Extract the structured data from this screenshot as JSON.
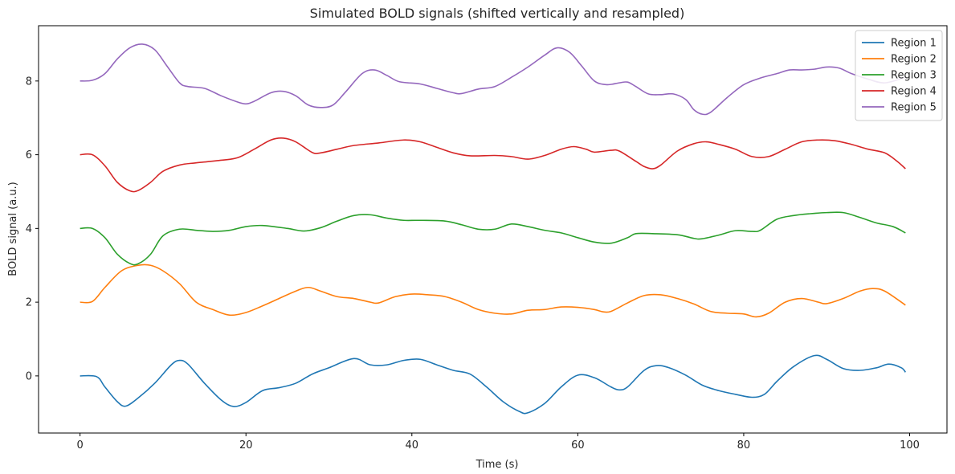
{
  "chart_data": {
    "type": "line",
    "title": "Simulated BOLD signals (shifted vertically and resampled)",
    "xlabel": "Time (s)",
    "ylabel": "BOLD signal (a.u.)",
    "xlim": [
      -5,
      104.5
    ],
    "ylim": [
      -1.55,
      9.5
    ],
    "xticks": [
      0,
      20,
      40,
      60,
      80,
      100
    ],
    "yticks": [
      0,
      2,
      4,
      6,
      8
    ],
    "grid": false,
    "legend_position": "top-right",
    "series": [
      {
        "name": "Region 1",
        "color": "#1f77b4",
        "points": [
          [
            0,
            0
          ],
          [
            2,
            -0.02
          ],
          [
            3,
            -0.3
          ],
          [
            4.5,
            -0.7
          ],
          [
            5.5,
            -0.82
          ],
          [
            7,
            -0.6
          ],
          [
            9,
            -0.2
          ],
          [
            11,
            0.3
          ],
          [
            12,
            0.42
          ],
          [
            13,
            0.32
          ],
          [
            15,
            -0.2
          ],
          [
            17,
            -0.65
          ],
          [
            18.5,
            -0.83
          ],
          [
            20,
            -0.72
          ],
          [
            22,
            -0.4
          ],
          [
            24,
            -0.32
          ],
          [
            26,
            -0.2
          ],
          [
            28,
            0.05
          ],
          [
            30,
            0.22
          ],
          [
            33,
            0.47
          ],
          [
            35,
            0.3
          ],
          [
            37,
            0.3
          ],
          [
            39,
            0.42
          ],
          [
            41,
            0.45
          ],
          [
            43,
            0.3
          ],
          [
            45,
            0.15
          ],
          [
            47,
            0.05
          ],
          [
            49,
            -0.3
          ],
          [
            51,
            -0.7
          ],
          [
            53,
            -0.97
          ],
          [
            54,
            -1.0
          ],
          [
            56,
            -0.75
          ],
          [
            58,
            -0.3
          ],
          [
            60,
            0.02
          ],
          [
            62,
            -0.05
          ],
          [
            64,
            -0.3
          ],
          [
            65,
            -0.38
          ],
          [
            66,
            -0.3
          ],
          [
            68,
            0.15
          ],
          [
            69.5,
            0.28
          ],
          [
            71,
            0.22
          ],
          [
            73,
            0.02
          ],
          [
            75,
            -0.25
          ],
          [
            77,
            -0.4
          ],
          [
            79,
            -0.5
          ],
          [
            81,
            -0.58
          ],
          [
            82.5,
            -0.5
          ],
          [
            84,
            -0.15
          ],
          [
            86,
            0.25
          ],
          [
            88.5,
            0.55
          ],
          [
            90,
            0.45
          ],
          [
            92,
            0.2
          ],
          [
            94,
            0.15
          ],
          [
            96,
            0.22
          ],
          [
            97.5,
            0.32
          ],
          [
            99,
            0.22
          ],
          [
            99.5,
            0.1
          ]
        ]
      },
      {
        "name": "Region 2",
        "color": "#ff7f0e",
        "points": [
          [
            0,
            2
          ],
          [
            1.5,
            2.02
          ],
          [
            3,
            2.4
          ],
          [
            5,
            2.85
          ],
          [
            7,
            3.0
          ],
          [
            8.5,
            3.0
          ],
          [
            10,
            2.85
          ],
          [
            12,
            2.5
          ],
          [
            14,
            2.0
          ],
          [
            16,
            1.8
          ],
          [
            18,
            1.65
          ],
          [
            20,
            1.72
          ],
          [
            22,
            1.9
          ],
          [
            24,
            2.1
          ],
          [
            26,
            2.3
          ],
          [
            27.5,
            2.4
          ],
          [
            29,
            2.3
          ],
          [
            31,
            2.15
          ],
          [
            33,
            2.1
          ],
          [
            35,
            2.0
          ],
          [
            36,
            1.98
          ],
          [
            38,
            2.15
          ],
          [
            40,
            2.22
          ],
          [
            42,
            2.2
          ],
          [
            44,
            2.15
          ],
          [
            46,
            2.0
          ],
          [
            48,
            1.8
          ],
          [
            50,
            1.7
          ],
          [
            52,
            1.68
          ],
          [
            54,
            1.78
          ],
          [
            56,
            1.8
          ],
          [
            58,
            1.87
          ],
          [
            60,
            1.86
          ],
          [
            62,
            1.8
          ],
          [
            63,
            1.74
          ],
          [
            64,
            1.75
          ],
          [
            66,
            1.98
          ],
          [
            68,
            2.18
          ],
          [
            70,
            2.2
          ],
          [
            72,
            2.1
          ],
          [
            74,
            1.95
          ],
          [
            76,
            1.75
          ],
          [
            78,
            1.7
          ],
          [
            80,
            1.68
          ],
          [
            81.5,
            1.6
          ],
          [
            83,
            1.7
          ],
          [
            85,
            2.0
          ],
          [
            87,
            2.1
          ],
          [
            89,
            2.0
          ],
          [
            90,
            1.96
          ],
          [
            92,
            2.1
          ],
          [
            94,
            2.3
          ],
          [
            95.5,
            2.37
          ],
          [
            97,
            2.3
          ],
          [
            99.5,
            1.92
          ]
        ]
      },
      {
        "name": "Region 3",
        "color": "#2ca02c",
        "points": [
          [
            0,
            4
          ],
          [
            1.5,
            4.0
          ],
          [
            3,
            3.75
          ],
          [
            4.5,
            3.3
          ],
          [
            6,
            3.05
          ],
          [
            7,
            3.04
          ],
          [
            8.5,
            3.3
          ],
          [
            10,
            3.8
          ],
          [
            12,
            3.98
          ],
          [
            14,
            3.95
          ],
          [
            16,
            3.92
          ],
          [
            18,
            3.95
          ],
          [
            20,
            4.05
          ],
          [
            22,
            4.08
          ],
          [
            25,
            4.0
          ],
          [
            27,
            3.93
          ],
          [
            29,
            4.02
          ],
          [
            31,
            4.2
          ],
          [
            33,
            4.35
          ],
          [
            35,
            4.37
          ],
          [
            37,
            4.28
          ],
          [
            39,
            4.22
          ],
          [
            41,
            4.22
          ],
          [
            44,
            4.2
          ],
          [
            46,
            4.1
          ],
          [
            48,
            3.98
          ],
          [
            50,
            3.98
          ],
          [
            52,
            4.12
          ],
          [
            54,
            4.05
          ],
          [
            56,
            3.95
          ],
          [
            58,
            3.88
          ],
          [
            60,
            3.75
          ],
          [
            62,
            3.63
          ],
          [
            64,
            3.6
          ],
          [
            66,
            3.75
          ],
          [
            67,
            3.86
          ],
          [
            69,
            3.86
          ],
          [
            72,
            3.83
          ],
          [
            74,
            3.73
          ],
          [
            75,
            3.72
          ],
          [
            77,
            3.82
          ],
          [
            79,
            3.94
          ],
          [
            81,
            3.92
          ],
          [
            82,
            3.95
          ],
          [
            84,
            4.25
          ],
          [
            86,
            4.35
          ],
          [
            88,
            4.4
          ],
          [
            90,
            4.43
          ],
          [
            92,
            4.43
          ],
          [
            94,
            4.3
          ],
          [
            96,
            4.15
          ],
          [
            98,
            4.05
          ],
          [
            99.5,
            3.88
          ]
        ]
      },
      {
        "name": "Region 4",
        "color": "#d62728",
        "points": [
          [
            0,
            6
          ],
          [
            1.5,
            6.0
          ],
          [
            3,
            5.7
          ],
          [
            4.5,
            5.25
          ],
          [
            6,
            5.02
          ],
          [
            7,
            5.03
          ],
          [
            8.5,
            5.25
          ],
          [
            10,
            5.55
          ],
          [
            12,
            5.72
          ],
          [
            14,
            5.78
          ],
          [
            17,
            5.85
          ],
          [
            19,
            5.92
          ],
          [
            21,
            6.15
          ],
          [
            23,
            6.4
          ],
          [
            24.5,
            6.45
          ],
          [
            26,
            6.35
          ],
          [
            28,
            6.06
          ],
          [
            29,
            6.05
          ],
          [
            31,
            6.15
          ],
          [
            33,
            6.25
          ],
          [
            36,
            6.32
          ],
          [
            39,
            6.4
          ],
          [
            41,
            6.35
          ],
          [
            43,
            6.2
          ],
          [
            45,
            6.05
          ],
          [
            47,
            5.97
          ],
          [
            50,
            5.98
          ],
          [
            52,
            5.95
          ],
          [
            54,
            5.88
          ],
          [
            56,
            5.98
          ],
          [
            58,
            6.15
          ],
          [
            59.5,
            6.22
          ],
          [
            61,
            6.15
          ],
          [
            62,
            6.07
          ],
          [
            64,
            6.12
          ],
          [
            65,
            6.1
          ],
          [
            67,
            5.82
          ],
          [
            68,
            5.68
          ],
          [
            69,
            5.62
          ],
          [
            70,
            5.72
          ],
          [
            72,
            6.1
          ],
          [
            74,
            6.3
          ],
          [
            75.5,
            6.35
          ],
          [
            77,
            6.28
          ],
          [
            79,
            6.15
          ],
          [
            81,
            5.95
          ],
          [
            83,
            5.95
          ],
          [
            85,
            6.15
          ],
          [
            87,
            6.35
          ],
          [
            89,
            6.4
          ],
          [
            91,
            6.38
          ],
          [
            93,
            6.28
          ],
          [
            95,
            6.15
          ],
          [
            97,
            6.05
          ],
          [
            98.5,
            5.82
          ],
          [
            99.5,
            5.62
          ]
        ]
      },
      {
        "name": "Region 5",
        "color": "#9467bd",
        "points": [
          [
            0,
            8
          ],
          [
            1.5,
            8.02
          ],
          [
            3,
            8.2
          ],
          [
            4.5,
            8.6
          ],
          [
            6,
            8.9
          ],
          [
            7.5,
            9.0
          ],
          [
            9,
            8.85
          ],
          [
            10.5,
            8.4
          ],
          [
            12,
            7.95
          ],
          [
            13,
            7.85
          ],
          [
            15,
            7.8
          ],
          [
            17,
            7.6
          ],
          [
            19,
            7.43
          ],
          [
            20,
            7.38
          ],
          [
            21,
            7.45
          ],
          [
            23,
            7.68
          ],
          [
            24.5,
            7.72
          ],
          [
            26,
            7.6
          ],
          [
            27.5,
            7.35
          ],
          [
            29,
            7.28
          ],
          [
            30.5,
            7.35
          ],
          [
            32,
            7.7
          ],
          [
            34,
            8.2
          ],
          [
            35.5,
            8.3
          ],
          [
            37,
            8.15
          ],
          [
            38.5,
            7.98
          ],
          [
            41,
            7.92
          ],
          [
            43,
            7.8
          ],
          [
            45,
            7.68
          ],
          [
            46,
            7.66
          ],
          [
            48,
            7.78
          ],
          [
            50,
            7.85
          ],
          [
            52,
            8.1
          ],
          [
            54,
            8.38
          ],
          [
            56,
            8.7
          ],
          [
            57.5,
            8.9
          ],
          [
            59,
            8.78
          ],
          [
            60.5,
            8.4
          ],
          [
            62,
            8.0
          ],
          [
            63.5,
            7.9
          ],
          [
            65,
            7.95
          ],
          [
            66,
            7.97
          ],
          [
            67,
            7.85
          ],
          [
            68.5,
            7.65
          ],
          [
            70,
            7.63
          ],
          [
            71.5,
            7.65
          ],
          [
            73,
            7.5
          ],
          [
            74,
            7.22
          ],
          [
            75,
            7.1
          ],
          [
            76,
            7.15
          ],
          [
            78,
            7.55
          ],
          [
            80,
            7.9
          ],
          [
            82,
            8.08
          ],
          [
            84,
            8.2
          ],
          [
            85.5,
            8.3
          ],
          [
            87,
            8.3
          ],
          [
            88.5,
            8.32
          ],
          [
            90,
            8.38
          ],
          [
            91.5,
            8.35
          ],
          [
            93,
            8.2
          ],
          [
            95,
            8.05
          ],
          [
            97,
            7.95
          ],
          [
            99.5,
            8.1
          ]
        ]
      }
    ]
  }
}
